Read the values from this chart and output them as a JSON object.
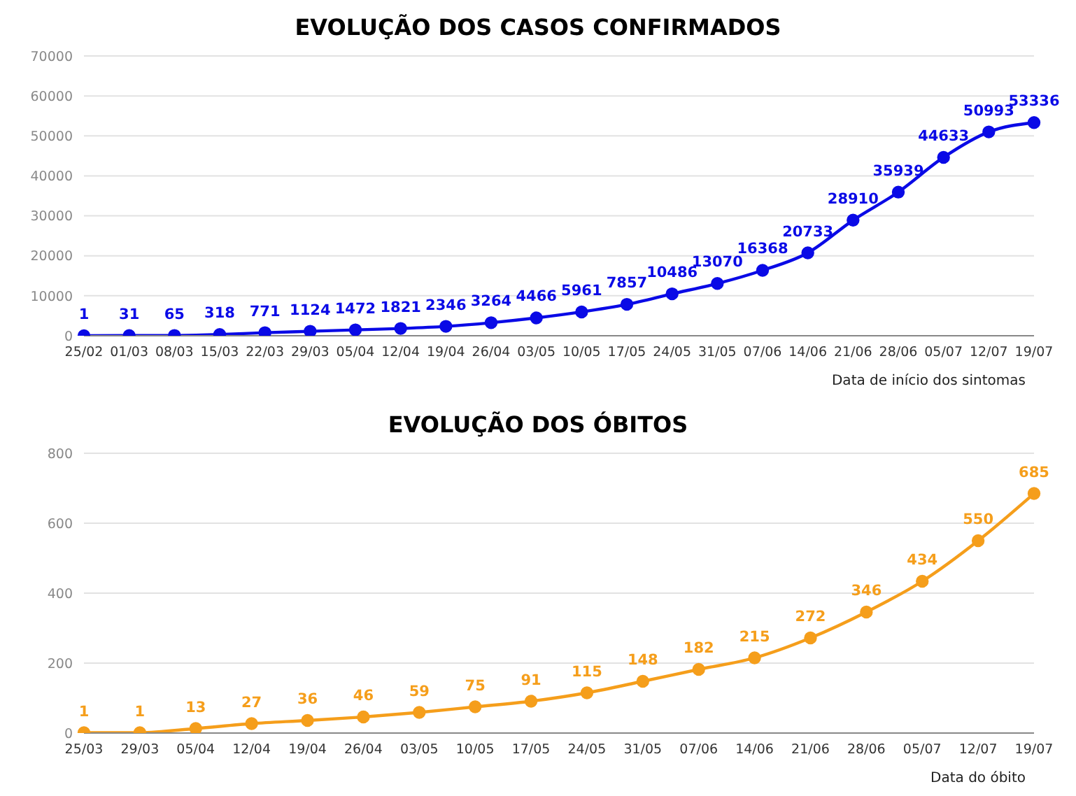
{
  "chart_data": [
    {
      "type": "line",
      "title": "EVOLUÇÃO DOS CASOS CONFIRMADOS",
      "xlabel": "Data de início dos sintomas",
      "categories": [
        "25/02",
        "01/03",
        "08/03",
        "15/03",
        "22/03",
        "29/03",
        "05/04",
        "12/04",
        "19/04",
        "26/04",
        "03/05",
        "10/05",
        "17/05",
        "24/05",
        "31/05",
        "07/06",
        "14/06",
        "21/06",
        "28/06",
        "05/07",
        "12/07",
        "19/07"
      ],
      "series": [
        {
          "color": "#0a0ae6",
          "values": [
            1,
            31,
            65,
            318,
            771,
            1124,
            1472,
            1821,
            2346,
            3264,
            4466,
            5961,
            7857,
            10486,
            13070,
            16368,
            20733,
            28910,
            35939,
            44633,
            50993,
            53336
          ]
        }
      ],
      "ylim": [
        0,
        70000
      ],
      "yticks": [
        0,
        10000,
        20000,
        30000,
        40000,
        50000,
        60000,
        70000
      ],
      "grid": "y",
      "marker": "circle",
      "data_labels": true,
      "legend": false
    },
    {
      "type": "line",
      "title": "EVOLUÇÃO DOS ÓBITOS",
      "xlabel": "Data do óbito",
      "categories": [
        "25/03",
        "29/03",
        "05/04",
        "12/04",
        "19/04",
        "26/04",
        "03/05",
        "10/05",
        "17/05",
        "24/05",
        "31/05",
        "07/06",
        "14/06",
        "21/06",
        "28/06",
        "05/07",
        "12/07",
        "19/07"
      ],
      "series": [
        {
          "color": "#f59e1b",
          "values": [
            1,
            1,
            13,
            27,
            36,
            46,
            59,
            75,
            91,
            115,
            148,
            182,
            215,
            272,
            346,
            434,
            550,
            685
          ]
        }
      ],
      "ylim": [
        0,
        800
      ],
      "yticks": [
        0,
        200,
        400,
        600,
        800
      ],
      "grid": "y",
      "marker": "circle",
      "data_labels": true,
      "legend": false
    }
  ]
}
